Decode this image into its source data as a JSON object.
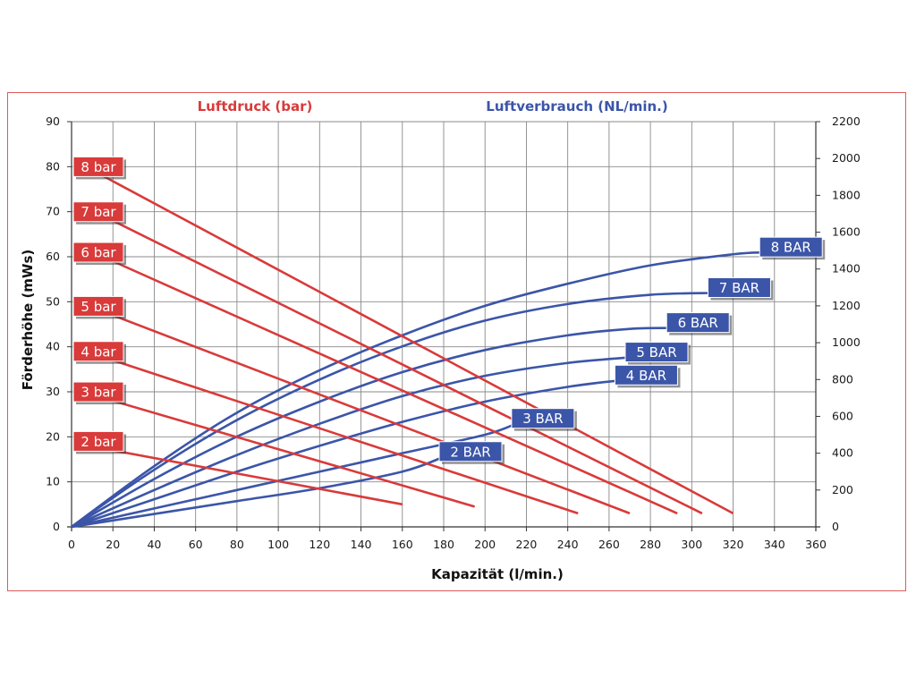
{
  "chart_data": {
    "type": "line",
    "title_left": "Luftdruck (bar)",
    "title_right": "Luftverbrauch (NL/min.)",
    "xlabel": "Kapazität (l/min.)",
    "ylabel": "Förderhöhe (mWs)",
    "xlim": [
      0,
      360
    ],
    "ylim": [
      0,
      90
    ],
    "y2lim": [
      0,
      2200
    ],
    "x_ticks": [
      0,
      20,
      40,
      60,
      80,
      100,
      120,
      140,
      160,
      180,
      200,
      220,
      240,
      260,
      280,
      300,
      320,
      340,
      360
    ],
    "y_ticks": [
      0,
      10,
      20,
      30,
      40,
      50,
      60,
      70,
      80,
      90
    ],
    "y2_ticks": [
      0,
      200,
      400,
      600,
      800,
      1000,
      1200,
      1400,
      1600,
      1800,
      2000,
      2200
    ],
    "grid": true,
    "colors": {
      "pressure": "#d93a3a",
      "consumption": "#3b55a8"
    },
    "pressure_series": [
      {
        "name": "8 bar",
        "points": [
          [
            15,
            78
          ],
          [
            320,
            3
          ]
        ]
      },
      {
        "name": "7 bar",
        "points": [
          [
            20,
            68
          ],
          [
            305,
            3
          ]
        ]
      },
      {
        "name": "6 bar",
        "points": [
          [
            20,
            59
          ],
          [
            293,
            3
          ]
        ]
      },
      {
        "name": "5 bar",
        "points": [
          [
            20,
            47
          ],
          [
            270,
            3
          ]
        ]
      },
      {
        "name": "4 bar",
        "points": [
          [
            20,
            37
          ],
          [
            245,
            3
          ]
        ]
      },
      {
        "name": "3 bar",
        "points": [
          [
            20,
            28
          ],
          [
            195,
            4.5
          ]
        ]
      },
      {
        "name": "2 bar",
        "points": [
          [
            20,
            17
          ],
          [
            160,
            5
          ]
        ]
      }
    ],
    "consumption_series": [
      {
        "name": "8 BAR",
        "points": [
          [
            0,
            0
          ],
          [
            40,
            330
          ],
          [
            80,
            620
          ],
          [
            120,
            850
          ],
          [
            160,
            1040
          ],
          [
            200,
            1200
          ],
          [
            240,
            1320
          ],
          [
            280,
            1420
          ],
          [
            320,
            1480
          ],
          [
            335,
            1490
          ]
        ]
      },
      {
        "name": "7 BAR",
        "points": [
          [
            0,
            0
          ],
          [
            40,
            310
          ],
          [
            80,
            580
          ],
          [
            120,
            800
          ],
          [
            160,
            980
          ],
          [
            200,
            1120
          ],
          [
            240,
            1210
          ],
          [
            280,
            1260
          ],
          [
            310,
            1270
          ]
        ]
      },
      {
        "name": "6 BAR",
        "points": [
          [
            0,
            0
          ],
          [
            40,
            260
          ],
          [
            80,
            490
          ],
          [
            120,
            680
          ],
          [
            160,
            840
          ],
          [
            200,
            960
          ],
          [
            240,
            1040
          ],
          [
            270,
            1075
          ],
          [
            290,
            1080
          ]
        ]
      },
      {
        "name": "5 BAR",
        "points": [
          [
            0,
            0
          ],
          [
            40,
            200
          ],
          [
            80,
            390
          ],
          [
            120,
            560
          ],
          [
            160,
            710
          ],
          [
            200,
            820
          ],
          [
            240,
            890
          ],
          [
            270,
            920
          ]
        ]
      },
      {
        "name": "4 BAR",
        "points": [
          [
            0,
            0
          ],
          [
            40,
            150
          ],
          [
            80,
            300
          ],
          [
            120,
            440
          ],
          [
            160,
            570
          ],
          [
            200,
            680
          ],
          [
            240,
            760
          ],
          [
            265,
            795
          ]
        ]
      },
      {
        "name": "3 BAR",
        "points": [
          [
            0,
            0
          ],
          [
            40,
            100
          ],
          [
            80,
            200
          ],
          [
            120,
            300
          ],
          [
            160,
            400
          ],
          [
            200,
            500
          ],
          [
            215,
            560
          ]
        ]
      },
      {
        "name": "2 BAR",
        "points": [
          [
            0,
            0
          ],
          [
            40,
            70
          ],
          [
            80,
            140
          ],
          [
            120,
            210
          ],
          [
            160,
            300
          ],
          [
            180,
            380
          ]
        ]
      }
    ]
  }
}
